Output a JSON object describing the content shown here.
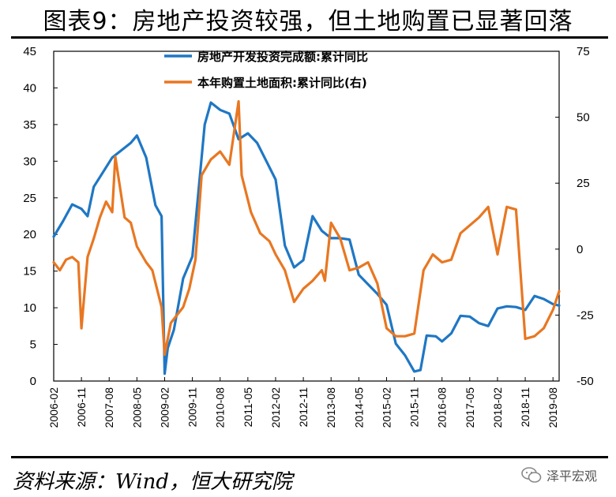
{
  "title": "图表9：房地产投资较强，但土地购置已显著回落",
  "source": "资料来源：Wind，恒大研究院",
  "watermark": "泽平宏观",
  "colors": {
    "investment": "#1f77c4",
    "land": "#e87722"
  },
  "chart_data": {
    "type": "line",
    "title": "图表9：房地产投资较强，但土地购置已显著回落",
    "legend_position": "top-center",
    "grid": false,
    "x_tick_labels": [
      "2006-02",
      "2006-11",
      "2007-08",
      "2008-05",
      "2009-02",
      "2009-11",
      "2010-08",
      "2011-05",
      "2012-02",
      "2012-11",
      "2013-08",
      "2014-05",
      "2015-02",
      "2015-11",
      "2016-08",
      "2017-05",
      "2018-02",
      "2018-11",
      "2019-08"
    ],
    "y_left": {
      "ylim": [
        0,
        45
      ],
      "ticks": [
        0,
        5,
        10,
        15,
        20,
        25,
        30,
        35,
        40,
        45
      ]
    },
    "y_right": {
      "ylim": [
        -50,
        75
      ],
      "ticks": [
        -50,
        -25,
        0,
        25,
        50,
        75
      ]
    },
    "series": [
      {
        "name": "房地产开发投资完成额:累计同比",
        "axis": "left",
        "color": "#1f77c4",
        "points": [
          [
            "2006-02",
            19.7
          ],
          [
            "2006-05",
            21.8
          ],
          [
            "2006-08",
            24.1
          ],
          [
            "2006-11",
            23.5
          ],
          [
            "2007-01",
            22.5
          ],
          [
            "2007-03",
            26.5
          ],
          [
            "2007-06",
            28.5
          ],
          [
            "2007-09",
            30.5
          ],
          [
            "2007-12",
            31.5
          ],
          [
            "2008-03",
            32.5
          ],
          [
            "2008-05",
            33.5
          ],
          [
            "2008-08",
            30.5
          ],
          [
            "2008-11",
            24.0
          ],
          [
            "2009-01",
            22.5
          ],
          [
            "2009-02",
            1.0
          ],
          [
            "2009-03",
            4.5
          ],
          [
            "2009-05",
            7.0
          ],
          [
            "2009-08",
            14.0
          ],
          [
            "2009-11",
            17.0
          ],
          [
            "2010-01",
            26.0
          ],
          [
            "2010-03",
            35.0
          ],
          [
            "2010-05",
            38.0
          ],
          [
            "2010-08",
            37.0
          ],
          [
            "2010-11",
            36.5
          ],
          [
            "2011-02",
            33.0
          ],
          [
            "2011-05",
            33.8
          ],
          [
            "2011-08",
            32.5
          ],
          [
            "2011-11",
            30.0
          ],
          [
            "2012-02",
            27.5
          ],
          [
            "2012-05",
            18.5
          ],
          [
            "2012-08",
            15.5
          ],
          [
            "2012-11",
            16.5
          ],
          [
            "2013-02",
            22.5
          ],
          [
            "2013-05",
            20.5
          ],
          [
            "2013-08",
            19.5
          ],
          [
            "2013-11",
            19.5
          ],
          [
            "2014-02",
            19.3
          ],
          [
            "2014-05",
            14.5
          ],
          [
            "2014-08",
            13.2
          ],
          [
            "2014-11",
            11.9
          ],
          [
            "2015-02",
            10.4
          ],
          [
            "2015-05",
            5.1
          ],
          [
            "2015-08",
            3.5
          ],
          [
            "2015-11",
            1.3
          ],
          [
            "2016-01",
            1.5
          ],
          [
            "2016-03",
            6.2
          ],
          [
            "2016-06",
            6.1
          ],
          [
            "2016-08",
            5.4
          ],
          [
            "2016-11",
            6.5
          ],
          [
            "2017-02",
            8.9
          ],
          [
            "2017-05",
            8.8
          ],
          [
            "2017-08",
            7.9
          ],
          [
            "2017-11",
            7.5
          ],
          [
            "2018-02",
            9.9
          ],
          [
            "2018-05",
            10.2
          ],
          [
            "2018-08",
            10.1
          ],
          [
            "2018-11",
            9.7
          ],
          [
            "2019-02",
            11.6
          ],
          [
            "2019-05",
            11.2
          ],
          [
            "2019-08",
            10.5
          ],
          [
            "2019-10",
            10.3
          ]
        ]
      },
      {
        "name": "本年购置土地面积:累计同比(右)",
        "axis": "right",
        "color": "#e87722",
        "points": [
          [
            "2006-02",
            -5.0
          ],
          [
            "2006-04",
            -8.0
          ],
          [
            "2006-06",
            -4.0
          ],
          [
            "2006-08",
            -3.0
          ],
          [
            "2006-10",
            -5.0
          ],
          [
            "2006-11",
            -30.0
          ],
          [
            "2007-01",
            -3.0
          ],
          [
            "2007-03",
            4.0
          ],
          [
            "2007-05",
            12.0
          ],
          [
            "2007-07",
            18.0
          ],
          [
            "2007-09",
            14.0
          ],
          [
            "2007-10",
            35.0
          ],
          [
            "2008-01",
            12.0
          ],
          [
            "2008-03",
            10.0
          ],
          [
            "2008-05",
            1.0
          ],
          [
            "2008-08",
            -5.0
          ],
          [
            "2008-10",
            -8.0
          ],
          [
            "2009-01",
            -22.0
          ],
          [
            "2009-02",
            -40.0
          ],
          [
            "2009-04",
            -28.0
          ],
          [
            "2009-06",
            -25.0
          ],
          [
            "2009-08",
            -22.0
          ],
          [
            "2009-10",
            -15.0
          ],
          [
            "2009-12",
            -4.0
          ],
          [
            "2010-02",
            28.0
          ],
          [
            "2010-05",
            34.0
          ],
          [
            "2010-08",
            37.0
          ],
          [
            "2010-11",
            32.0
          ],
          [
            "2011-02",
            56.0
          ],
          [
            "2011-03",
            28.0
          ],
          [
            "2011-06",
            14.0
          ],
          [
            "2011-09",
            6.0
          ],
          [
            "2011-12",
            3.0
          ],
          [
            "2012-02",
            -2.0
          ],
          [
            "2012-05",
            -8.0
          ],
          [
            "2012-08",
            -20.0
          ],
          [
            "2012-11",
            -15.0
          ],
          [
            "2013-02",
            -12.0
          ],
          [
            "2013-05",
            -8.0
          ],
          [
            "2013-06",
            -12.0
          ],
          [
            "2013-08",
            10.0
          ],
          [
            "2013-11",
            4.0
          ],
          [
            "2014-02",
            -8.0
          ],
          [
            "2014-05",
            -7.0
          ],
          [
            "2014-08",
            -5.0
          ],
          [
            "2014-11",
            -13.0
          ],
          [
            "2015-02",
            -30.0
          ],
          [
            "2015-05",
            -33.0
          ],
          [
            "2015-08",
            -33.0
          ],
          [
            "2015-11",
            -32.0
          ],
          [
            "2016-02",
            -8.0
          ],
          [
            "2016-05",
            -2.0
          ],
          [
            "2016-08",
            -5.0
          ],
          [
            "2016-11",
            -4.0
          ],
          [
            "2017-02",
            6.0
          ],
          [
            "2017-05",
            9.0
          ],
          [
            "2017-08",
            12.0
          ],
          [
            "2017-11",
            16.0
          ],
          [
            "2018-02",
            -2.0
          ],
          [
            "2018-05",
            16.0
          ],
          [
            "2018-08",
            15.0
          ],
          [
            "2018-11",
            -34.0
          ],
          [
            "2019-02",
            -33.0
          ],
          [
            "2019-05",
            -30.0
          ],
          [
            "2019-08",
            -23.0
          ],
          [
            "2019-10",
            -16.0
          ]
        ]
      }
    ]
  }
}
